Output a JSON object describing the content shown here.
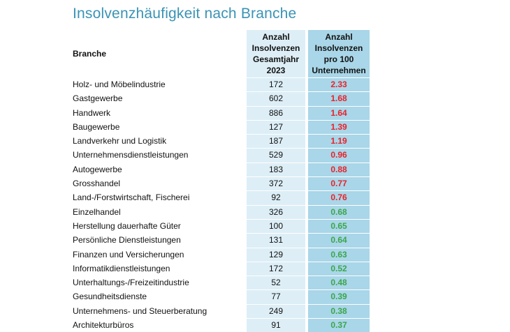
{
  "title": "Insolvenzhäufigkeit nach Branche",
  "colors": {
    "title": "#3a93b5",
    "high": "#e8222a",
    "low": "#3aa64a",
    "count_bg": "#ddeef6",
    "rate_bg": "#a9d6e8"
  },
  "table": {
    "headers": {
      "branche": "Branche",
      "count_lines": [
        "Anzahl",
        "Insolvenzen",
        "Gesamtjahr",
        "2023"
      ],
      "rate_lines": [
        "Anzahl",
        "Insolvenzen",
        "pro 100",
        "Unternehmen"
      ]
    },
    "rows": [
      {
        "branche": "Holz- und Möbelindustrie",
        "count": "172",
        "rate": "2.33",
        "level": "high"
      },
      {
        "branche": "Gastgewerbe",
        "count": "602",
        "rate": "1.68",
        "level": "high"
      },
      {
        "branche": "Handwerk",
        "count": "886",
        "rate": "1.64",
        "level": "high"
      },
      {
        "branche": "Baugewerbe",
        "count": "127",
        "rate": "1.39",
        "level": "high"
      },
      {
        "branche": "Landverkehr und Logistik",
        "count": "187",
        "rate": "1.19",
        "level": "high"
      },
      {
        "branche": "Unternehmensdienstleistungen",
        "count": "529",
        "rate": "0.96",
        "level": "high"
      },
      {
        "branche": "Autogewerbe",
        "count": "183",
        "rate": "0.88",
        "level": "high"
      },
      {
        "branche": "Grosshandel",
        "count": "372",
        "rate": "0.77",
        "level": "high"
      },
      {
        "branche": "Land-/Forstwirtschaft, Fischerei",
        "count": "92",
        "rate": "0.76",
        "level": "high"
      },
      {
        "branche": "Einzelhandel",
        "count": "326",
        "rate": "0.68",
        "level": "low"
      },
      {
        "branche": "Herstellung dauerhafte Güter",
        "count": "100",
        "rate": "0.65",
        "level": "low"
      },
      {
        "branche": "Persönliche Dienstleistungen",
        "count": "131",
        "rate": "0.64",
        "level": "low"
      },
      {
        "branche": "Finanzen und Versicherungen",
        "count": "129",
        "rate": "0.63",
        "level": "low"
      },
      {
        "branche": "Informatikdienstleistungen",
        "count": "172",
        "rate": "0.52",
        "level": "low"
      },
      {
        "branche": "Unterhaltungs-/Freizeitindustrie",
        "count": "52",
        "rate": "0.48",
        "level": "low"
      },
      {
        "branche": "Gesundheitsdienste",
        "count": "77",
        "rate": "0.39",
        "level": "low"
      },
      {
        "branche": "Unternehmens- und Steuerberatung",
        "count": "249",
        "rate": "0.38",
        "level": "low"
      },
      {
        "branche": "Architekturbüros",
        "count": "91",
        "rate": "0.37",
        "level": "low"
      }
    ]
  }
}
